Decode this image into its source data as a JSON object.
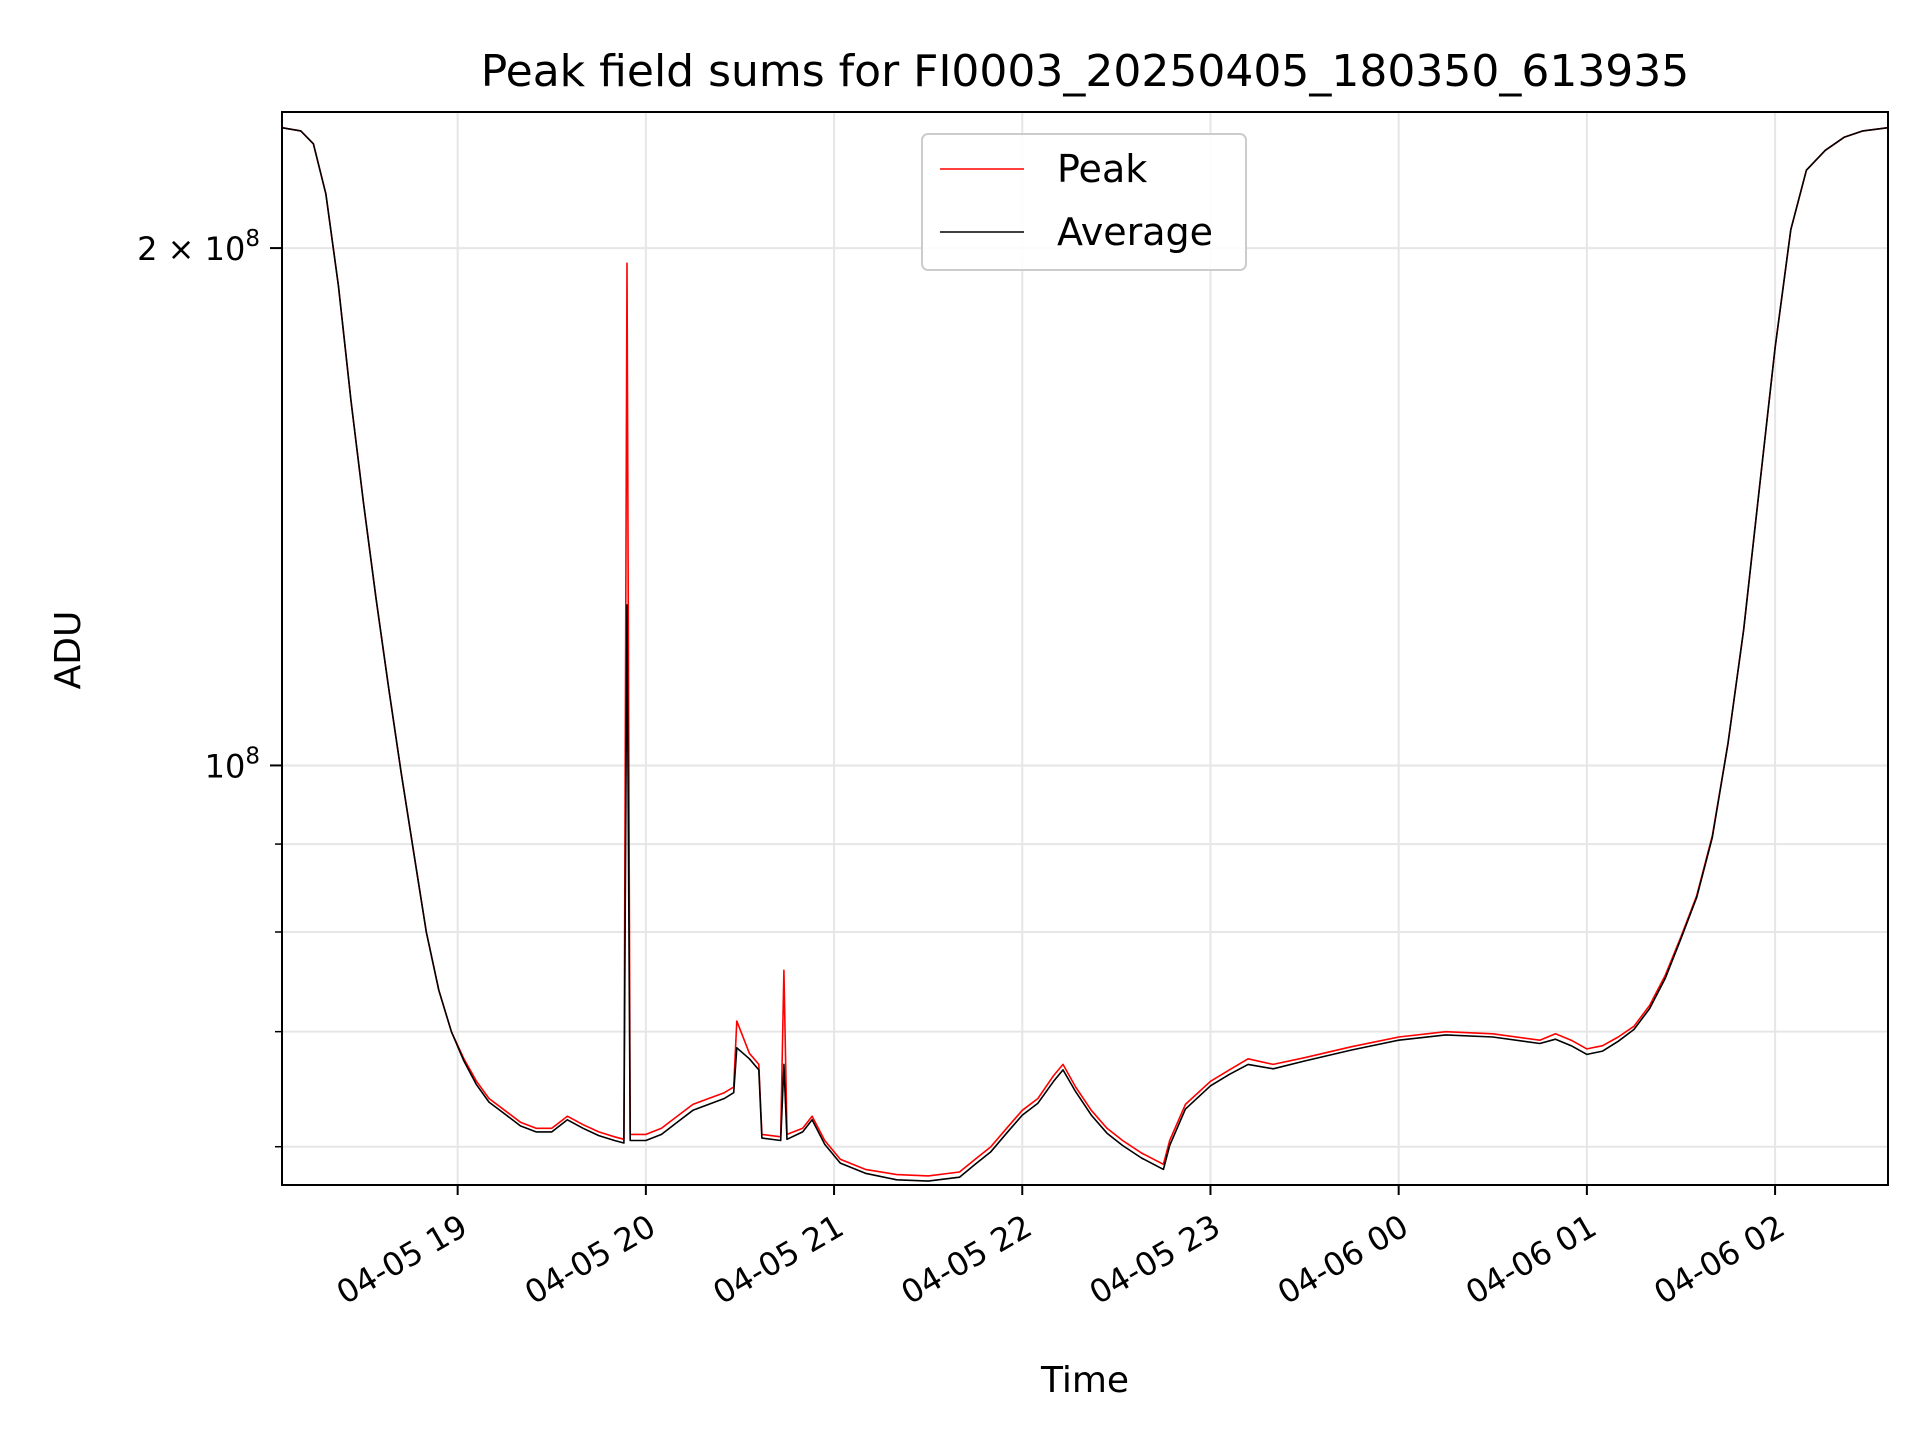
{
  "chart_data": {
    "type": "line",
    "title": "Peak field sums for FI0003_20250405_180350_613935",
    "xlabel": "Time",
    "ylabel": "ADU",
    "yscale": "log",
    "xlim": [
      "2025-04-05 18:04",
      "2025-04-06 02:36"
    ],
    "ylim": [
      57000000,
      240000000
    ],
    "grid": true,
    "legend_position": "top-center",
    "x_ticks": [
      {
        "t": "2025-04-05 19:00",
        "label": "04-05 19"
      },
      {
        "t": "2025-04-05 20:00",
        "label": "04-05 20"
      },
      {
        "t": "2025-04-05 21:00",
        "label": "04-05 21"
      },
      {
        "t": "2025-04-05 22:00",
        "label": "04-05 22"
      },
      {
        "t": "2025-04-05 23:00",
        "label": "04-05 23"
      },
      {
        "t": "2025-04-06 00:00",
        "label": "04-06 00"
      },
      {
        "t": "2025-04-06 01:00",
        "label": "04-06 01"
      },
      {
        "t": "2025-04-06 02:00",
        "label": "04-06 02"
      }
    ],
    "y_ticks_labeled": [
      {
        "value": 100000000,
        "label_base": "10",
        "label_exp": "8",
        "label_coef": ""
      },
      {
        "value": 200000000,
        "label_base": "10",
        "label_exp": "8",
        "label_coef": "2 × "
      }
    ],
    "y_ticks_minor": [
      60000000,
      70000000,
      80000000,
      90000000
    ],
    "series": [
      {
        "name": "Peak",
        "color": "#ff0000",
        "points": [
          [
            "2025-04-05 18:04",
            235000000
          ],
          [
            "2025-04-05 18:10",
            234000000
          ],
          [
            "2025-04-05 18:14",
            230000000
          ],
          [
            "2025-04-05 18:18",
            215000000
          ],
          [
            "2025-04-05 18:22",
            190000000
          ],
          [
            "2025-04-05 18:26",
            163000000
          ],
          [
            "2025-04-05 18:30",
            142000000
          ],
          [
            "2025-04-05 18:34",
            125000000
          ],
          [
            "2025-04-05 18:38",
            111000000
          ],
          [
            "2025-04-05 18:42",
            99000000
          ],
          [
            "2025-04-05 18:46",
            89000000
          ],
          [
            "2025-04-05 18:50",
            80000000
          ],
          [
            "2025-04-05 18:54",
            74000000
          ],
          [
            "2025-04-05 18:58",
            70000000
          ],
          [
            "2025-04-05 19:02",
            67500000
          ],
          [
            "2025-04-05 19:06",
            65500000
          ],
          [
            "2025-04-05 19:10",
            64000000
          ],
          [
            "2025-04-05 19:15",
            63000000
          ],
          [
            "2025-04-05 19:20",
            62000000
          ],
          [
            "2025-04-05 19:25",
            61500000
          ],
          [
            "2025-04-05 19:30",
            61500000
          ],
          [
            "2025-04-05 19:35",
            62500000
          ],
          [
            "2025-04-05 19:40",
            61800000
          ],
          [
            "2025-04-05 19:45",
            61200000
          ],
          [
            "2025-04-05 19:50",
            60800000
          ],
          [
            "2025-04-05 19:53",
            60600000
          ],
          [
            "2025-04-05 19:54",
            196000000
          ],
          [
            "2025-04-05 19:55",
            61000000
          ],
          [
            "2025-04-05 20:00",
            61000000
          ],
          [
            "2025-04-05 20:05",
            61500000
          ],
          [
            "2025-04-05 20:10",
            62500000
          ],
          [
            "2025-04-05 20:15",
            63500000
          ],
          [
            "2025-04-05 20:20",
            64000000
          ],
          [
            "2025-04-05 20:25",
            64500000
          ],
          [
            "2025-04-05 20:28",
            65000000
          ],
          [
            "2025-04-05 20:29",
            71000000
          ],
          [
            "2025-04-05 20:33",
            68000000
          ],
          [
            "2025-04-05 20:36",
            67000000
          ],
          [
            "2025-04-05 20:37",
            61000000
          ],
          [
            "2025-04-05 20:43",
            60800000
          ],
          [
            "2025-04-05 20:44",
            76000000
          ],
          [
            "2025-04-05 20:45",
            61000000
          ],
          [
            "2025-04-05 20:50",
            61500000
          ],
          [
            "2025-04-05 20:53",
            62500000
          ],
          [
            "2025-04-05 20:57",
            60500000
          ],
          [
            "2025-04-05 21:02",
            59000000
          ],
          [
            "2025-04-05 21:10",
            58200000
          ],
          [
            "2025-04-05 21:20",
            57800000
          ],
          [
            "2025-04-05 21:30",
            57700000
          ],
          [
            "2025-04-05 21:40",
            58000000
          ],
          [
            "2025-04-05 21:45",
            59000000
          ],
          [
            "2025-04-05 21:50",
            60000000
          ],
          [
            "2025-04-05 21:55",
            61500000
          ],
          [
            "2025-04-05 22:00",
            63000000
          ],
          [
            "2025-04-05 22:05",
            64000000
          ],
          [
            "2025-04-05 22:10",
            66000000
          ],
          [
            "2025-04-05 22:13",
            67000000
          ],
          [
            "2025-04-05 22:17",
            65000000
          ],
          [
            "2025-04-05 22:22",
            63000000
          ],
          [
            "2025-04-05 22:27",
            61500000
          ],
          [
            "2025-04-05 22:32",
            60500000
          ],
          [
            "2025-04-05 22:38",
            59500000
          ],
          [
            "2025-04-05 22:45",
            58600000
          ],
          [
            "2025-04-05 22:47",
            60500000
          ],
          [
            "2025-04-05 22:52",
            63500000
          ],
          [
            "2025-04-05 23:00",
            65500000
          ],
          [
            "2025-04-05 23:06",
            66500000
          ],
          [
            "2025-04-05 23:12",
            67500000
          ],
          [
            "2025-04-05 23:20",
            67000000
          ],
          [
            "2025-04-05 23:30",
            67600000
          ],
          [
            "2025-04-05 23:45",
            68600000
          ],
          [
            "2025-04-06 00:00",
            69500000
          ],
          [
            "2025-04-06 00:15",
            70000000
          ],
          [
            "2025-04-06 00:30",
            69800000
          ],
          [
            "2025-04-06 00:45",
            69200000
          ],
          [
            "2025-04-06 00:50",
            69800000
          ],
          [
            "2025-04-06 00:55",
            69200000
          ],
          [
            "2025-04-06 01:00",
            68400000
          ],
          [
            "2025-04-06 01:05",
            68700000
          ],
          [
            "2025-04-06 01:10",
            69500000
          ],
          [
            "2025-04-06 01:15",
            70500000
          ],
          [
            "2025-04-06 01:20",
            72500000
          ],
          [
            "2025-04-06 01:25",
            75500000
          ],
          [
            "2025-04-06 01:30",
            79500000
          ],
          [
            "2025-04-06 01:35",
            84000000
          ],
          [
            "2025-04-06 01:40",
            91000000
          ],
          [
            "2025-04-06 01:45",
            103000000
          ],
          [
            "2025-04-06 01:50",
            120000000
          ],
          [
            "2025-04-06 01:55",
            145000000
          ],
          [
            "2025-04-06 02:00",
            175000000
          ],
          [
            "2025-04-06 02:05",
            205000000
          ],
          [
            "2025-04-06 02:10",
            222000000
          ],
          [
            "2025-04-06 02:16",
            228000000
          ],
          [
            "2025-04-06 02:22",
            232000000
          ],
          [
            "2025-04-06 02:28",
            234000000
          ],
          [
            "2025-04-06 02:36",
            235000000
          ]
        ]
      },
      {
        "name": "Average",
        "color": "#000000",
        "points": [
          [
            "2025-04-05 18:04",
            235000000
          ],
          [
            "2025-04-05 18:10",
            234000000
          ],
          [
            "2025-04-05 18:14",
            230000000
          ],
          [
            "2025-04-05 18:18",
            215000000
          ],
          [
            "2025-04-05 18:22",
            190000000
          ],
          [
            "2025-04-05 18:26",
            163000000
          ],
          [
            "2025-04-05 18:30",
            142000000
          ],
          [
            "2025-04-05 18:34",
            125000000
          ],
          [
            "2025-04-05 18:38",
            111000000
          ],
          [
            "2025-04-05 18:42",
            99000000
          ],
          [
            "2025-04-05 18:46",
            89000000
          ],
          [
            "2025-04-05 18:50",
            80000000
          ],
          [
            "2025-04-05 18:54",
            74000000
          ],
          [
            "2025-04-05 18:58",
            70000000
          ],
          [
            "2025-04-05 19:02",
            67300000
          ],
          [
            "2025-04-05 19:06",
            65200000
          ],
          [
            "2025-04-05 19:10",
            63700000
          ],
          [
            "2025-04-05 19:15",
            62700000
          ],
          [
            "2025-04-05 19:20",
            61700000
          ],
          [
            "2025-04-05 19:25",
            61200000
          ],
          [
            "2025-04-05 19:30",
            61200000
          ],
          [
            "2025-04-05 19:35",
            62200000
          ],
          [
            "2025-04-05 19:40",
            61500000
          ],
          [
            "2025-04-05 19:45",
            60900000
          ],
          [
            "2025-04-05 19:50",
            60500000
          ],
          [
            "2025-04-05 19:53",
            60300000
          ],
          [
            "2025-04-05 19:54",
            124000000
          ],
          [
            "2025-04-05 19:55",
            60500000
          ],
          [
            "2025-04-05 20:00",
            60500000
          ],
          [
            "2025-04-05 20:05",
            61000000
          ],
          [
            "2025-04-05 20:10",
            62000000
          ],
          [
            "2025-04-05 20:15",
            63000000
          ],
          [
            "2025-04-05 20:20",
            63500000
          ],
          [
            "2025-04-05 20:25",
            64000000
          ],
          [
            "2025-04-05 20:28",
            64500000
          ],
          [
            "2025-04-05 20:29",
            68500000
          ],
          [
            "2025-04-05 20:33",
            67500000
          ],
          [
            "2025-04-05 20:36",
            66500000
          ],
          [
            "2025-04-05 20:37",
            60700000
          ],
          [
            "2025-04-05 20:43",
            60500000
          ],
          [
            "2025-04-05 20:44",
            67000000
          ],
          [
            "2025-04-05 20:45",
            60600000
          ],
          [
            "2025-04-05 20:50",
            61200000
          ],
          [
            "2025-04-05 20:53",
            62200000
          ],
          [
            "2025-04-05 20:57",
            60200000
          ],
          [
            "2025-04-05 21:02",
            58700000
          ],
          [
            "2025-04-05 21:10",
            57900000
          ],
          [
            "2025-04-05 21:20",
            57400000
          ],
          [
            "2025-04-05 21:30",
            57300000
          ],
          [
            "2025-04-05 21:40",
            57600000
          ],
          [
            "2025-04-05 21:45",
            58600000
          ],
          [
            "2025-04-05 21:50",
            59600000
          ],
          [
            "2025-04-05 21:55",
            61100000
          ],
          [
            "2025-04-05 22:00",
            62600000
          ],
          [
            "2025-04-05 22:05",
            63600000
          ],
          [
            "2025-04-05 22:10",
            65500000
          ],
          [
            "2025-04-05 22:13",
            66500000
          ],
          [
            "2025-04-05 22:17",
            64600000
          ],
          [
            "2025-04-05 22:22",
            62600000
          ],
          [
            "2025-04-05 22:27",
            61100000
          ],
          [
            "2025-04-05 22:32",
            60100000
          ],
          [
            "2025-04-05 22:38",
            59100000
          ],
          [
            "2025-04-05 22:45",
            58200000
          ],
          [
            "2025-04-05 22:47",
            60100000
          ],
          [
            "2025-04-05 22:52",
            63100000
          ],
          [
            "2025-04-05 23:00",
            65100000
          ],
          [
            "2025-04-05 23:06",
            66100000
          ],
          [
            "2025-04-05 23:12",
            67000000
          ],
          [
            "2025-04-05 23:20",
            66600000
          ],
          [
            "2025-04-05 23:30",
            67300000
          ],
          [
            "2025-04-05 23:45",
            68300000
          ],
          [
            "2025-04-06 00:00",
            69200000
          ],
          [
            "2025-04-06 00:15",
            69700000
          ],
          [
            "2025-04-06 00:30",
            69500000
          ],
          [
            "2025-04-06 00:45",
            68900000
          ],
          [
            "2025-04-06 00:50",
            69300000
          ],
          [
            "2025-04-06 00:55",
            68700000
          ],
          [
            "2025-04-06 01:00",
            67900000
          ],
          [
            "2025-04-06 01:05",
            68200000
          ],
          [
            "2025-04-06 01:10",
            69100000
          ],
          [
            "2025-04-06 01:15",
            70200000
          ],
          [
            "2025-04-06 01:20",
            72200000
          ],
          [
            "2025-04-06 01:25",
            75200000
          ],
          [
            "2025-04-06 01:30",
            79300000
          ],
          [
            "2025-04-06 01:35",
            83800000
          ],
          [
            "2025-04-06 01:40",
            90800000
          ],
          [
            "2025-04-06 01:45",
            103000000
          ],
          [
            "2025-04-06 01:50",
            120000000
          ],
          [
            "2025-04-06 01:55",
            145000000
          ],
          [
            "2025-04-06 02:00",
            175000000
          ],
          [
            "2025-04-06 02:05",
            205000000
          ],
          [
            "2025-04-06 02:10",
            222000000
          ],
          [
            "2025-04-06 02:16",
            228000000
          ],
          [
            "2025-04-06 02:22",
            232000000
          ],
          [
            "2025-04-06 02:28",
            234000000
          ],
          [
            "2025-04-06 02:36",
            235000000
          ]
        ]
      }
    ]
  }
}
